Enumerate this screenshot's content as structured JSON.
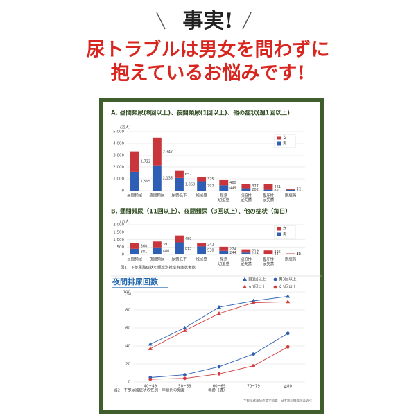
{
  "header": {
    "title": "事実!",
    "lines": [
      "尿トラブルは男女を問わずに",
      "抱えているお悩みです!"
    ]
  },
  "source": "下部尿路症状の疫学調査　日本排尿機能学会調べ",
  "chart_data": [
    {
      "type": "stacked_bar",
      "title": "A. 昼間頻尿(8回以上)、夜間頻尿(1回以上)、他の症状(週1回以上)",
      "unit": "(万人)",
      "categories": [
        "昼間頻尿",
        "夜間頻尿",
        "尿勢低下",
        "残尿感",
        "尿意切迫感",
        "切迫性尿失禁",
        "腹圧性尿失禁",
        "膀胱痛"
      ],
      "series": [
        {
          "name": "女",
          "color": "#c8353a",
          "values": [
            1722,
            2347,
            657,
            375,
            460,
            377,
            461,
            77
          ],
          "value_labels": [
            "1,722",
            "2,347",
            "657",
            "375",
            "460",
            "377",
            "461",
            "77"
          ]
        },
        {
          "name": "男",
          "color": "#2f5fb5",
          "values": [
            1595,
            2135,
            1068,
            792,
            449,
            202,
            82,
            73
          ],
          "value_labels": [
            "1,595",
            "2,135",
            "1,068",
            "792",
            "449",
            "202",
            "82",
            "73"
          ]
        }
      ],
      "ylim": [
        0,
        5000
      ],
      "yticks": [
        0,
        {
          "value": 1000,
          "label": "1,000"
        },
        {
          "value": 2000,
          "label": "2,000"
        },
        {
          "value": 3000,
          "label": "3,000"
        },
        {
          "value": 4000,
          "label": "4,000"
        },
        {
          "value": 5000,
          "label": "5,000"
        }
      ],
      "grid": true
    },
    {
      "type": "stacked_bar",
      "title": "B. 昼間頻尿（11回以上）、夜間頻尿（3回以上）、他の症状（毎日）",
      "unit": "(万人)",
      "categories": [
        "昼間頻尿",
        "夜間頻尿",
        "尿勢低下",
        "残尿感",
        "尿意切迫感",
        "切迫性尿失禁",
        "腹圧性尿失禁",
        "膀胱痛"
      ],
      "series": [
        {
          "name": "女",
          "color": "#c8353a",
          "values": [
            364,
            391,
            459,
            242,
            274,
            219,
            225,
            35
          ]
        },
        {
          "name": "男",
          "color": "#2f5fb5",
          "values": [
            381,
            480,
            813,
            538,
            244,
            124,
            44,
            33
          ]
        }
      ],
      "ylim": [
        0,
        2000
      ],
      "yticks": [
        0,
        500,
        {
          "value": 1000,
          "label": "1,000"
        },
        {
          "value": 1500,
          "label": "1,500"
        },
        {
          "value": 2000,
          "label": "2,000"
        }
      ],
      "grid": true,
      "caption": "図1　下部尿路症状の頻度別推定有症状者数"
    },
    {
      "type": "line",
      "title": "夜間排尿回数",
      "ylabel": "(%)",
      "xlabel": "年齢（歳）",
      "categories": [
        "40~49",
        "50~59",
        "60~69",
        "70~79",
        "≧80"
      ],
      "series": [
        {
          "name": "男1回以上",
          "color": "#2f5fb5",
          "marker": "triangle",
          "values": [
            42,
            60,
            83,
            90,
            95
          ]
        },
        {
          "name": "女1回以上",
          "color": "#d23c3c",
          "marker": "triangle",
          "values": [
            37,
            57,
            76,
            88,
            89
          ]
        },
        {
          "name": "男3回以上",
          "color": "#2f5fb5",
          "marker": "circle",
          "values": [
            5,
            8,
            17,
            31,
            54
          ]
        },
        {
          "name": "女3回以上",
          "color": "#d23c3c",
          "marker": "circle",
          "values": [
            3,
            4,
            9,
            18,
            39
          ]
        }
      ],
      "ylim": [
        0,
        100
      ],
      "yticks": [
        0,
        20,
        40,
        60,
        80,
        100
      ],
      "grid": true,
      "caption": "図2　下部尿路症状の性別・年齢別の頻度"
    }
  ]
}
